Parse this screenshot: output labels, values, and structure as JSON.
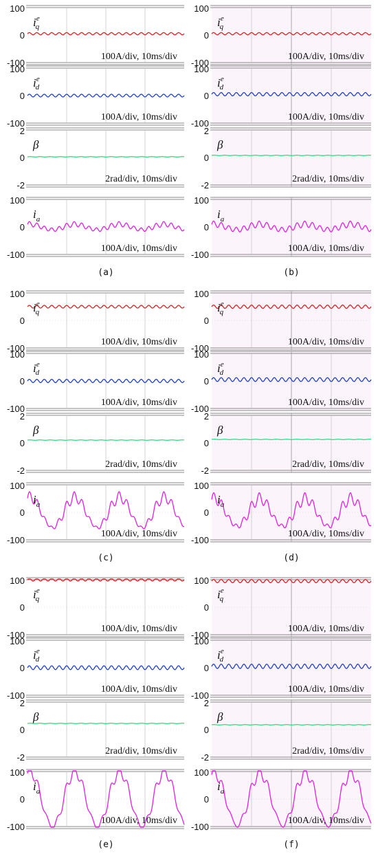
{
  "figure": {
    "panels": [
      {
        "id": "a",
        "caption": "(a)",
        "shaded": false,
        "subplots": [
          {
            "label_base": "i",
            "label_sub": "q",
            "label_sup": "e",
            "y_max": "100",
            "y_mid": "0",
            "y_min": "-100",
            "scale": "100A/div, 10ms/div"
          },
          {
            "label_base": "i",
            "label_sub": "d",
            "label_sup": "e",
            "y_max": "100",
            "y_mid": "0",
            "y_min": "-100",
            "scale": "100A/div, 10ms/div"
          },
          {
            "label_base": "β",
            "label_sub": "",
            "label_sup": "",
            "y_max": "2",
            "y_mid": "0",
            "y_min": "-2",
            "scale": "2rad/div, 10ms/div"
          },
          {
            "label_base": "i",
            "label_sub": "a",
            "label_sup": "",
            "y_max": "100",
            "y_mid": "0",
            "y_min": "-100",
            "scale": "100A/div, 10ms/div"
          }
        ]
      },
      {
        "id": "b",
        "caption": "(b)",
        "shaded": true,
        "subplots": [
          {
            "label_base": "i",
            "label_sub": "q",
            "label_sup": "e",
            "y_max": "100",
            "y_mid": "0",
            "y_min": "-100",
            "scale": "100A/div, 10ms/div"
          },
          {
            "label_base": "i",
            "label_sub": "d",
            "label_sup": "e",
            "y_max": "100",
            "y_mid": "0",
            "y_min": "-100",
            "scale": "100A/div, 10ms/div"
          },
          {
            "label_base": "β",
            "label_sub": "",
            "label_sup": "",
            "y_max": "2",
            "y_mid": "0",
            "y_min": "-2",
            "scale": "2rad/div, 10ms/div"
          },
          {
            "label_base": "i",
            "label_sub": "a",
            "label_sup": "",
            "y_max": "100",
            "y_mid": "0",
            "y_min": "-100",
            "scale": "100A/div, 10ms/div"
          }
        ]
      },
      {
        "id": "c",
        "caption": "(c)",
        "shaded": false,
        "subplots": [
          {
            "label_base": "i",
            "label_sub": "q",
            "label_sup": "e",
            "y_max": "100",
            "y_mid": "0",
            "y_min": "-100",
            "scale": "100A/div, 10ms/div"
          },
          {
            "label_base": "i",
            "label_sub": "d",
            "label_sup": "e",
            "y_max": "100",
            "y_mid": "0",
            "y_min": "-100",
            "scale": "100A/div, 10ms/div"
          },
          {
            "label_base": "β",
            "label_sub": "",
            "label_sup": "",
            "y_max": "2",
            "y_mid": "0",
            "y_min": "-2",
            "scale": "2rad/div, 10ms/div"
          },
          {
            "label_base": "i",
            "label_sub": "a",
            "label_sup": "",
            "y_max": "100",
            "y_mid": "0",
            "y_min": "-100",
            "scale": "100A/div, 10ms/div"
          }
        ]
      },
      {
        "id": "d",
        "caption": "(d)",
        "shaded": true,
        "subplots": [
          {
            "label_base": "i",
            "label_sub": "q",
            "label_sup": "e",
            "y_max": "100",
            "y_mid": "0",
            "y_min": "-100",
            "scale": "100A/div, 10ms/div"
          },
          {
            "label_base": "i",
            "label_sub": "d",
            "label_sup": "e",
            "y_max": "100",
            "y_mid": "0",
            "y_min": "-100",
            "scale": "100A/div, 10ms/div"
          },
          {
            "label_base": "β",
            "label_sub": "",
            "label_sup": "",
            "y_max": "2",
            "y_mid": "0",
            "y_min": "-2",
            "scale": "2rad/div, 10ms/div"
          },
          {
            "label_base": "i",
            "label_sub": "a",
            "label_sup": "",
            "y_max": "100",
            "y_mid": "0",
            "y_min": "-100",
            "scale": "100A/div, 10ms/div"
          }
        ]
      },
      {
        "id": "e",
        "caption": "(e)",
        "shaded": false,
        "subplots": [
          {
            "label_base": "i",
            "label_sub": "q",
            "label_sup": "e",
            "y_max": "100",
            "y_mid": "0",
            "y_min": "-100",
            "scale": "100A/div, 10ms/div"
          },
          {
            "label_base": "i",
            "label_sub": "d",
            "label_sup": "e",
            "y_max": "100",
            "y_mid": "0",
            "y_min": "-100",
            "scale": "100A/div, 10ms/div"
          },
          {
            "label_base": "β",
            "label_sub": "",
            "label_sup": "",
            "y_max": "2",
            "y_mid": "0",
            "y_min": "-2",
            "scale": "2rad/div, 10ms/div"
          },
          {
            "label_base": "i",
            "label_sub": "a",
            "label_sup": "",
            "y_max": "100",
            "y_mid": "0",
            "y_min": "-100",
            "scale": "100A/div, 10ms/div"
          }
        ]
      },
      {
        "id": "f",
        "caption": "(f)",
        "shaded": true,
        "subplots": [
          {
            "label_base": "i",
            "label_sub": "q",
            "label_sup": "e",
            "y_max": "100",
            "y_mid": "0",
            "y_min": "-100",
            "scale": "100A/div, 10ms/div"
          },
          {
            "label_base": "i",
            "label_sub": "d",
            "label_sup": "e",
            "y_max": "100",
            "y_mid": "0",
            "y_min": "-100",
            "scale": "100A/div, 10ms/div"
          },
          {
            "label_base": "β",
            "label_sub": "",
            "label_sup": "",
            "y_max": "2",
            "y_mid": "0",
            "y_min": "-2",
            "scale": "2rad/div, 10ms/div"
          },
          {
            "label_base": "i",
            "label_sub": "a",
            "label_sup": "",
            "y_max": "100",
            "y_mid": "0",
            "y_min": "-100",
            "scale": "100A/div, 10ms/div"
          }
        ]
      }
    ]
  },
  "chart_data": [
    {
      "type": "line",
      "panel": "a",
      "series": [
        {
          "signal": "iq",
          "color": "#e02020",
          "offset": 5,
          "amplitude": 4,
          "cycles": 21
        },
        {
          "signal": "id",
          "color": "#2040d0",
          "offset": 0,
          "amplitude": 5,
          "cycles": 21
        },
        {
          "signal": "beta",
          "color": "#30e080",
          "offset": 0.05,
          "amplitude": 0.02,
          "cycles": 0
        },
        {
          "signal": "ia",
          "color": "#e020e0",
          "offset": 0,
          "amplitude": 8,
          "cycles": 21,
          "fundamental_amplitude": 10,
          "fundamental_cycles": 3.5
        }
      ]
    },
    {
      "type": "line",
      "panel": "b",
      "series": [
        {
          "signal": "iq",
          "color": "#e02020",
          "offset": 5,
          "amplitude": 4,
          "cycles": 21
        },
        {
          "signal": "id",
          "color": "#2040d0",
          "offset": 5,
          "amplitude": 6,
          "cycles": 21
        },
        {
          "signal": "beta",
          "color": "#30e080",
          "offset": 0.15,
          "amplitude": 0.02,
          "cycles": 0
        },
        {
          "signal": "ia",
          "color": "#e020e0",
          "offset": 0,
          "amplitude": 10,
          "cycles": 21,
          "fundamental_amplitude": 10,
          "fundamental_cycles": 3.5
        }
      ]
    },
    {
      "type": "line",
      "panel": "c",
      "series": [
        {
          "signal": "iq",
          "color": "#e02020",
          "offset": 50,
          "amplitude": 5,
          "cycles": 21
        },
        {
          "signal": "id",
          "color": "#2040d0",
          "offset": 0,
          "amplitude": 6,
          "cycles": 21
        },
        {
          "signal": "beta",
          "color": "#30e080",
          "offset": 0.2,
          "amplitude": 0.02,
          "cycles": 0
        },
        {
          "signal": "ia",
          "color": "#e020e0",
          "offset": 0,
          "amplitude": 12,
          "cycles": 21,
          "fundamental_amplitude": 55,
          "fundamental_cycles": 3.5
        }
      ]
    },
    {
      "type": "line",
      "panel": "d",
      "series": [
        {
          "signal": "iq",
          "color": "#e02020",
          "offset": 50,
          "amplitude": 6,
          "cycles": 21
        },
        {
          "signal": "id",
          "color": "#2040d0",
          "offset": 5,
          "amplitude": 7,
          "cycles": 21
        },
        {
          "signal": "beta",
          "color": "#30e080",
          "offset": 0.25,
          "amplitude": 0.02,
          "cycles": 0
        },
        {
          "signal": "ia",
          "color": "#e020e0",
          "offset": 0,
          "amplitude": 14,
          "cycles": 21,
          "fundamental_amplitude": 50,
          "fundamental_cycles": 3.5
        }
      ]
    },
    {
      "type": "line",
      "panel": "e",
      "series": [
        {
          "signal": "iq",
          "color": "#e02020",
          "offset": 100,
          "amplitude": 5,
          "cycles": 21
        },
        {
          "signal": "id",
          "color": "#2040d0",
          "offset": 0,
          "amplitude": 7,
          "cycles": 21
        },
        {
          "signal": "beta",
          "color": "#30e080",
          "offset": 0.45,
          "amplitude": 0.02,
          "cycles": 0
        },
        {
          "signal": "ia",
          "color": "#e020e0",
          "offset": 0,
          "amplitude": 6,
          "cycles": 21,
          "fundamental_amplitude": 100,
          "fundamental_cycles": 3.5
        }
      ]
    },
    {
      "type": "line",
      "panel": "f",
      "series": [
        {
          "signal": "iq",
          "color": "#e02020",
          "offset": 95,
          "amplitude": 6,
          "cycles": 21
        },
        {
          "signal": "id",
          "color": "#2040d0",
          "offset": 5,
          "amplitude": 8,
          "cycles": 21
        },
        {
          "signal": "beta",
          "color": "#30e080",
          "offset": 0.35,
          "amplitude": 0.02,
          "cycles": 0
        },
        {
          "signal": "ia",
          "color": "#e020e0",
          "offset": 0,
          "amplitude": 8,
          "cycles": 21,
          "fundamental_amplitude": 95,
          "fundamental_cycles": 3.5
        }
      ]
    }
  ]
}
